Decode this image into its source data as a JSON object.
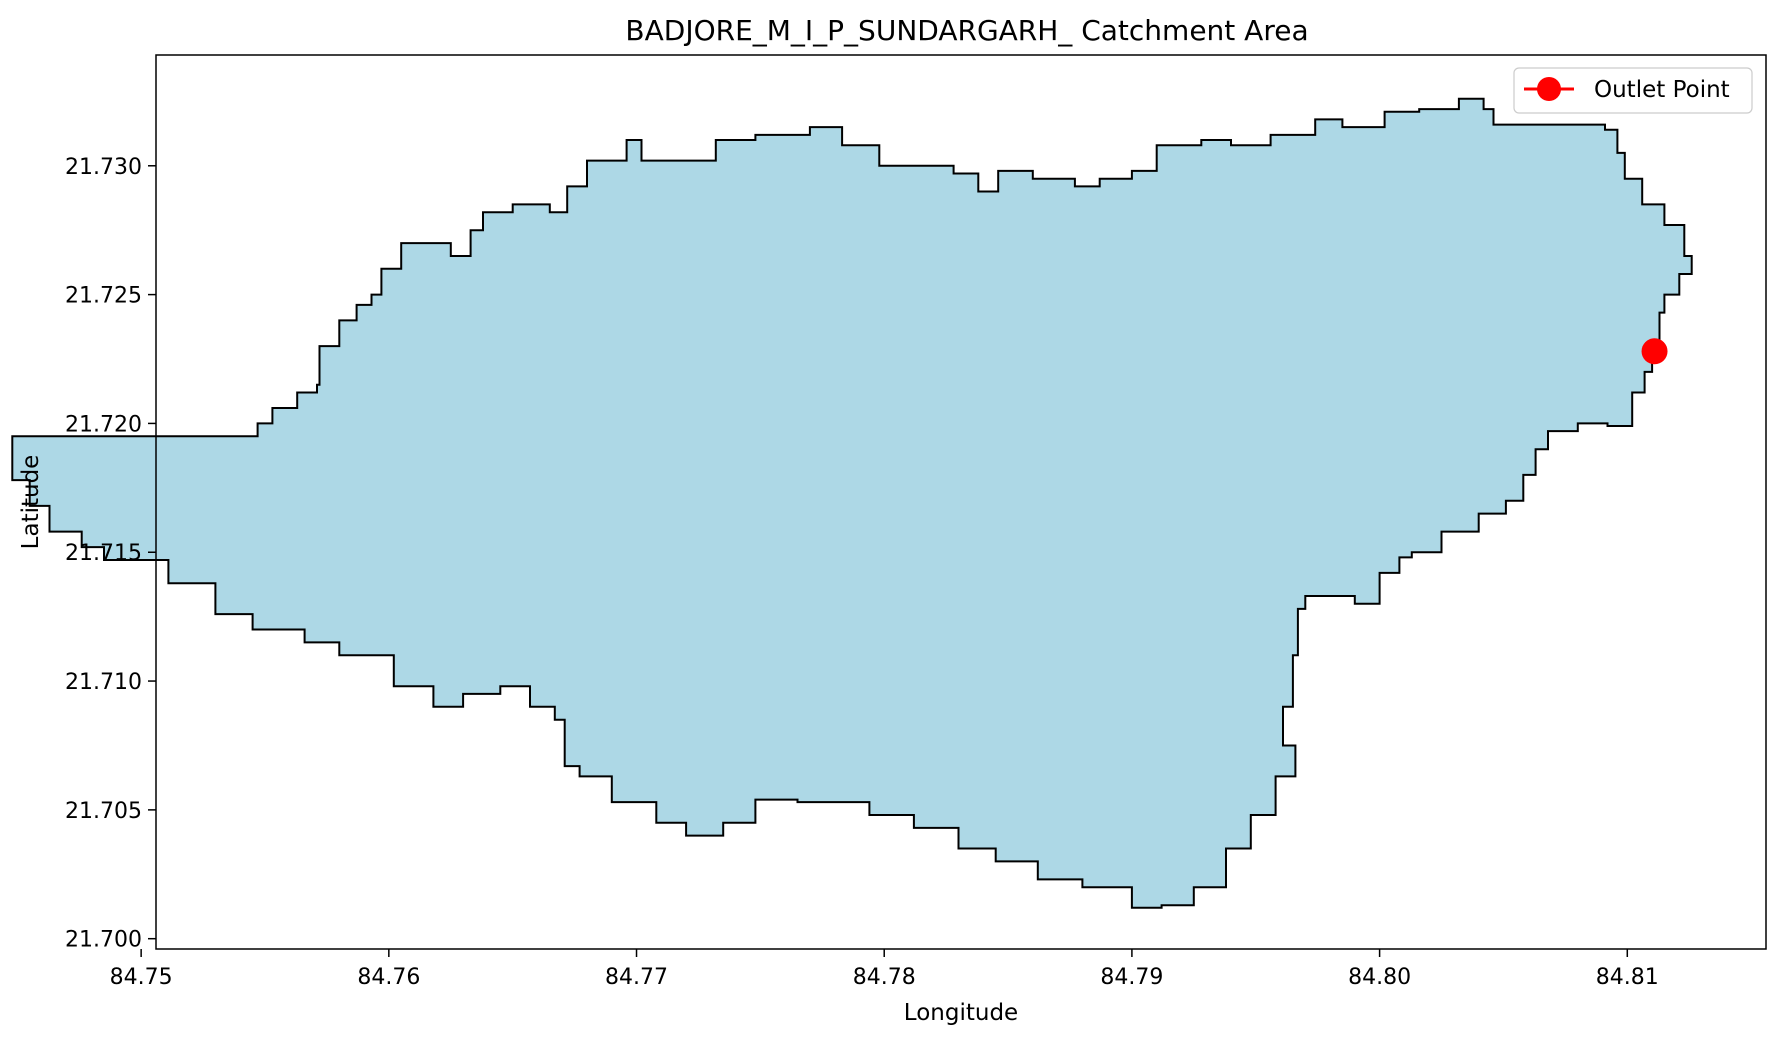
{
  "chart_data": {
    "type": "map",
    "title": "BADJORE_M_I_P_SUNDARGARH_ Catchment Area",
    "xlabel": "Longitude",
    "ylabel": "Latitude",
    "xlim": [
      84.7506,
      84.8156
    ],
    "ylim": [
      21.6996,
      21.7343
    ],
    "x_ticks": [
      84.75,
      84.76,
      84.77,
      84.78,
      84.79,
      84.8,
      84.81
    ],
    "x_tick_labels": [
      "84.75",
      "84.76",
      "84.77",
      "84.78",
      "84.79",
      "84.80",
      "84.81"
    ],
    "y_ticks": [
      21.7,
      21.705,
      21.71,
      21.715,
      21.72,
      21.725,
      21.73
    ],
    "y_tick_labels": [
      "21.700",
      "21.705",
      "21.710",
      "21.715",
      "21.720",
      "21.725",
      "21.730"
    ],
    "grid": false,
    "legend": {
      "position": "top-right",
      "entries": [
        {
          "label": "Outlet Point",
          "color": "#ff0000",
          "marker": "circle"
        }
      ]
    },
    "catchment": {
      "fill": "#add8e6",
      "edge": "#000000",
      "boundary": [
        [
          84.752,
          21.7195
        ],
        [
          84.7539,
          21.7195
        ],
        [
          84.7547,
          21.72
        ],
        [
          84.7553,
          21.7206
        ],
        [
          84.7563,
          21.7212
        ],
        [
          84.7571,
          21.7215
        ],
        [
          84.7572,
          21.723
        ],
        [
          84.758,
          21.724
        ],
        [
          84.7587,
          21.7246
        ],
        [
          84.7593,
          21.725
        ],
        [
          84.7597,
          21.726
        ],
        [
          84.7605,
          21.727
        ],
        [
          84.7618,
          21.727
        ],
        [
          84.7625,
          21.7265
        ],
        [
          84.7633,
          21.7275
        ],
        [
          84.7638,
          21.7282
        ],
        [
          84.765,
          21.7285
        ],
        [
          84.7665,
          21.7282
        ],
        [
          84.7672,
          21.7292
        ],
        [
          84.768,
          21.7302
        ],
        [
          84.7696,
          21.731
        ],
        [
          84.7702,
          21.7302
        ],
        [
          84.7721,
          21.7302
        ],
        [
          84.7732,
          21.731
        ],
        [
          84.7748,
          21.7312
        ],
        [
          84.777,
          21.7315
        ],
        [
          84.7783,
          21.7308
        ],
        [
          84.7798,
          21.73
        ],
        [
          84.7828,
          21.7297
        ],
        [
          84.7838,
          21.729
        ],
        [
          84.7846,
          21.7298
        ],
        [
          84.786,
          21.7295
        ],
        [
          84.7877,
          21.7292
        ],
        [
          84.7887,
          21.7295
        ],
        [
          84.79,
          21.7298
        ],
        [
          84.791,
          21.7308
        ],
        [
          84.7928,
          21.731
        ],
        [
          84.794,
          21.7308
        ],
        [
          84.7956,
          21.7312
        ],
        [
          84.7974,
          21.7318
        ],
        [
          84.7985,
          21.7315
        ],
        [
          84.8002,
          21.7321
        ],
        [
          84.8016,
          21.7322
        ],
        [
          84.8032,
          21.7326
        ],
        [
          84.8042,
          21.7322
        ],
        [
          84.8046,
          21.7316
        ],
        [
          84.8072,
          21.7316
        ],
        [
          84.8091,
          21.7314
        ],
        [
          84.8096,
          21.7305
        ],
        [
          84.8099,
          21.7295
        ],
        [
          84.8106,
          21.7285
        ],
        [
          84.8115,
          21.7277
        ],
        [
          84.8123,
          21.7265
        ],
        [
          84.8126,
          21.7258
        ],
        [
          84.8121,
          21.725
        ],
        [
          84.8115,
          21.7243
        ],
        [
          84.8113,
          21.723
        ],
        [
          84.811,
          21.722
        ],
        [
          84.8107,
          21.7212
        ],
        [
          84.8102,
          21.7199
        ],
        [
          84.8092,
          21.72
        ],
        [
          84.808,
          21.7197
        ],
        [
          84.8068,
          21.719
        ],
        [
          84.8063,
          21.718
        ],
        [
          84.8058,
          21.717
        ],
        [
          84.8051,
          21.7165
        ],
        [
          84.804,
          21.7158
        ],
        [
          84.8025,
          21.715
        ],
        [
          84.8013,
          21.7148
        ],
        [
          84.8008,
          21.7142
        ],
        [
          84.8,
          21.713
        ],
        [
          84.799,
          21.7133
        ],
        [
          84.797,
          21.7128
        ],
        [
          84.7967,
          21.711
        ],
        [
          84.7965,
          21.709
        ],
        [
          84.7961,
          21.7075
        ],
        [
          84.7966,
          21.7063
        ],
        [
          84.7958,
          21.7048
        ],
        [
          84.7948,
          21.7035
        ],
        [
          84.7938,
          21.702
        ],
        [
          84.7925,
          21.7013
        ],
        [
          84.7912,
          21.7012
        ],
        [
          84.79,
          21.702
        ],
        [
          84.788,
          21.7023
        ],
        [
          84.7862,
          21.703
        ],
        [
          84.7845,
          21.7035
        ],
        [
          84.783,
          21.7043
        ],
        [
          84.7812,
          21.7048
        ],
        [
          84.7794,
          21.7053
        ],
        [
          84.7765,
          21.7054
        ],
        [
          84.7748,
          21.7045
        ],
        [
          84.7735,
          21.704
        ],
        [
          84.772,
          21.7045
        ],
        [
          84.7708,
          21.7053
        ],
        [
          84.769,
          21.7063
        ],
        [
          84.7677,
          21.7067
        ],
        [
          84.7671,
          21.7085
        ],
        [
          84.7667,
          21.709
        ],
        [
          84.7657,
          21.7098
        ],
        [
          84.7645,
          21.7095
        ],
        [
          84.763,
          21.709
        ],
        [
          84.7618,
          21.7098
        ],
        [
          84.7602,
          21.711
        ],
        [
          84.758,
          21.7115
        ],
        [
          84.7566,
          21.712
        ],
        [
          84.7545,
          21.7126
        ],
        [
          84.753,
          21.7138
        ],
        [
          84.7511,
          21.7147
        ],
        [
          84.7485,
          21.7152
        ],
        [
          84.7476,
          21.7158
        ],
        [
          84.7463,
          21.7168
        ],
        [
          84.7455,
          21.7178
        ],
        [
          84.7448,
          21.7185
        ],
        [
          84.7448,
          21.7195
        ]
      ],
      "outlet_point": [
        84.8111,
        21.7228
      ]
    }
  }
}
